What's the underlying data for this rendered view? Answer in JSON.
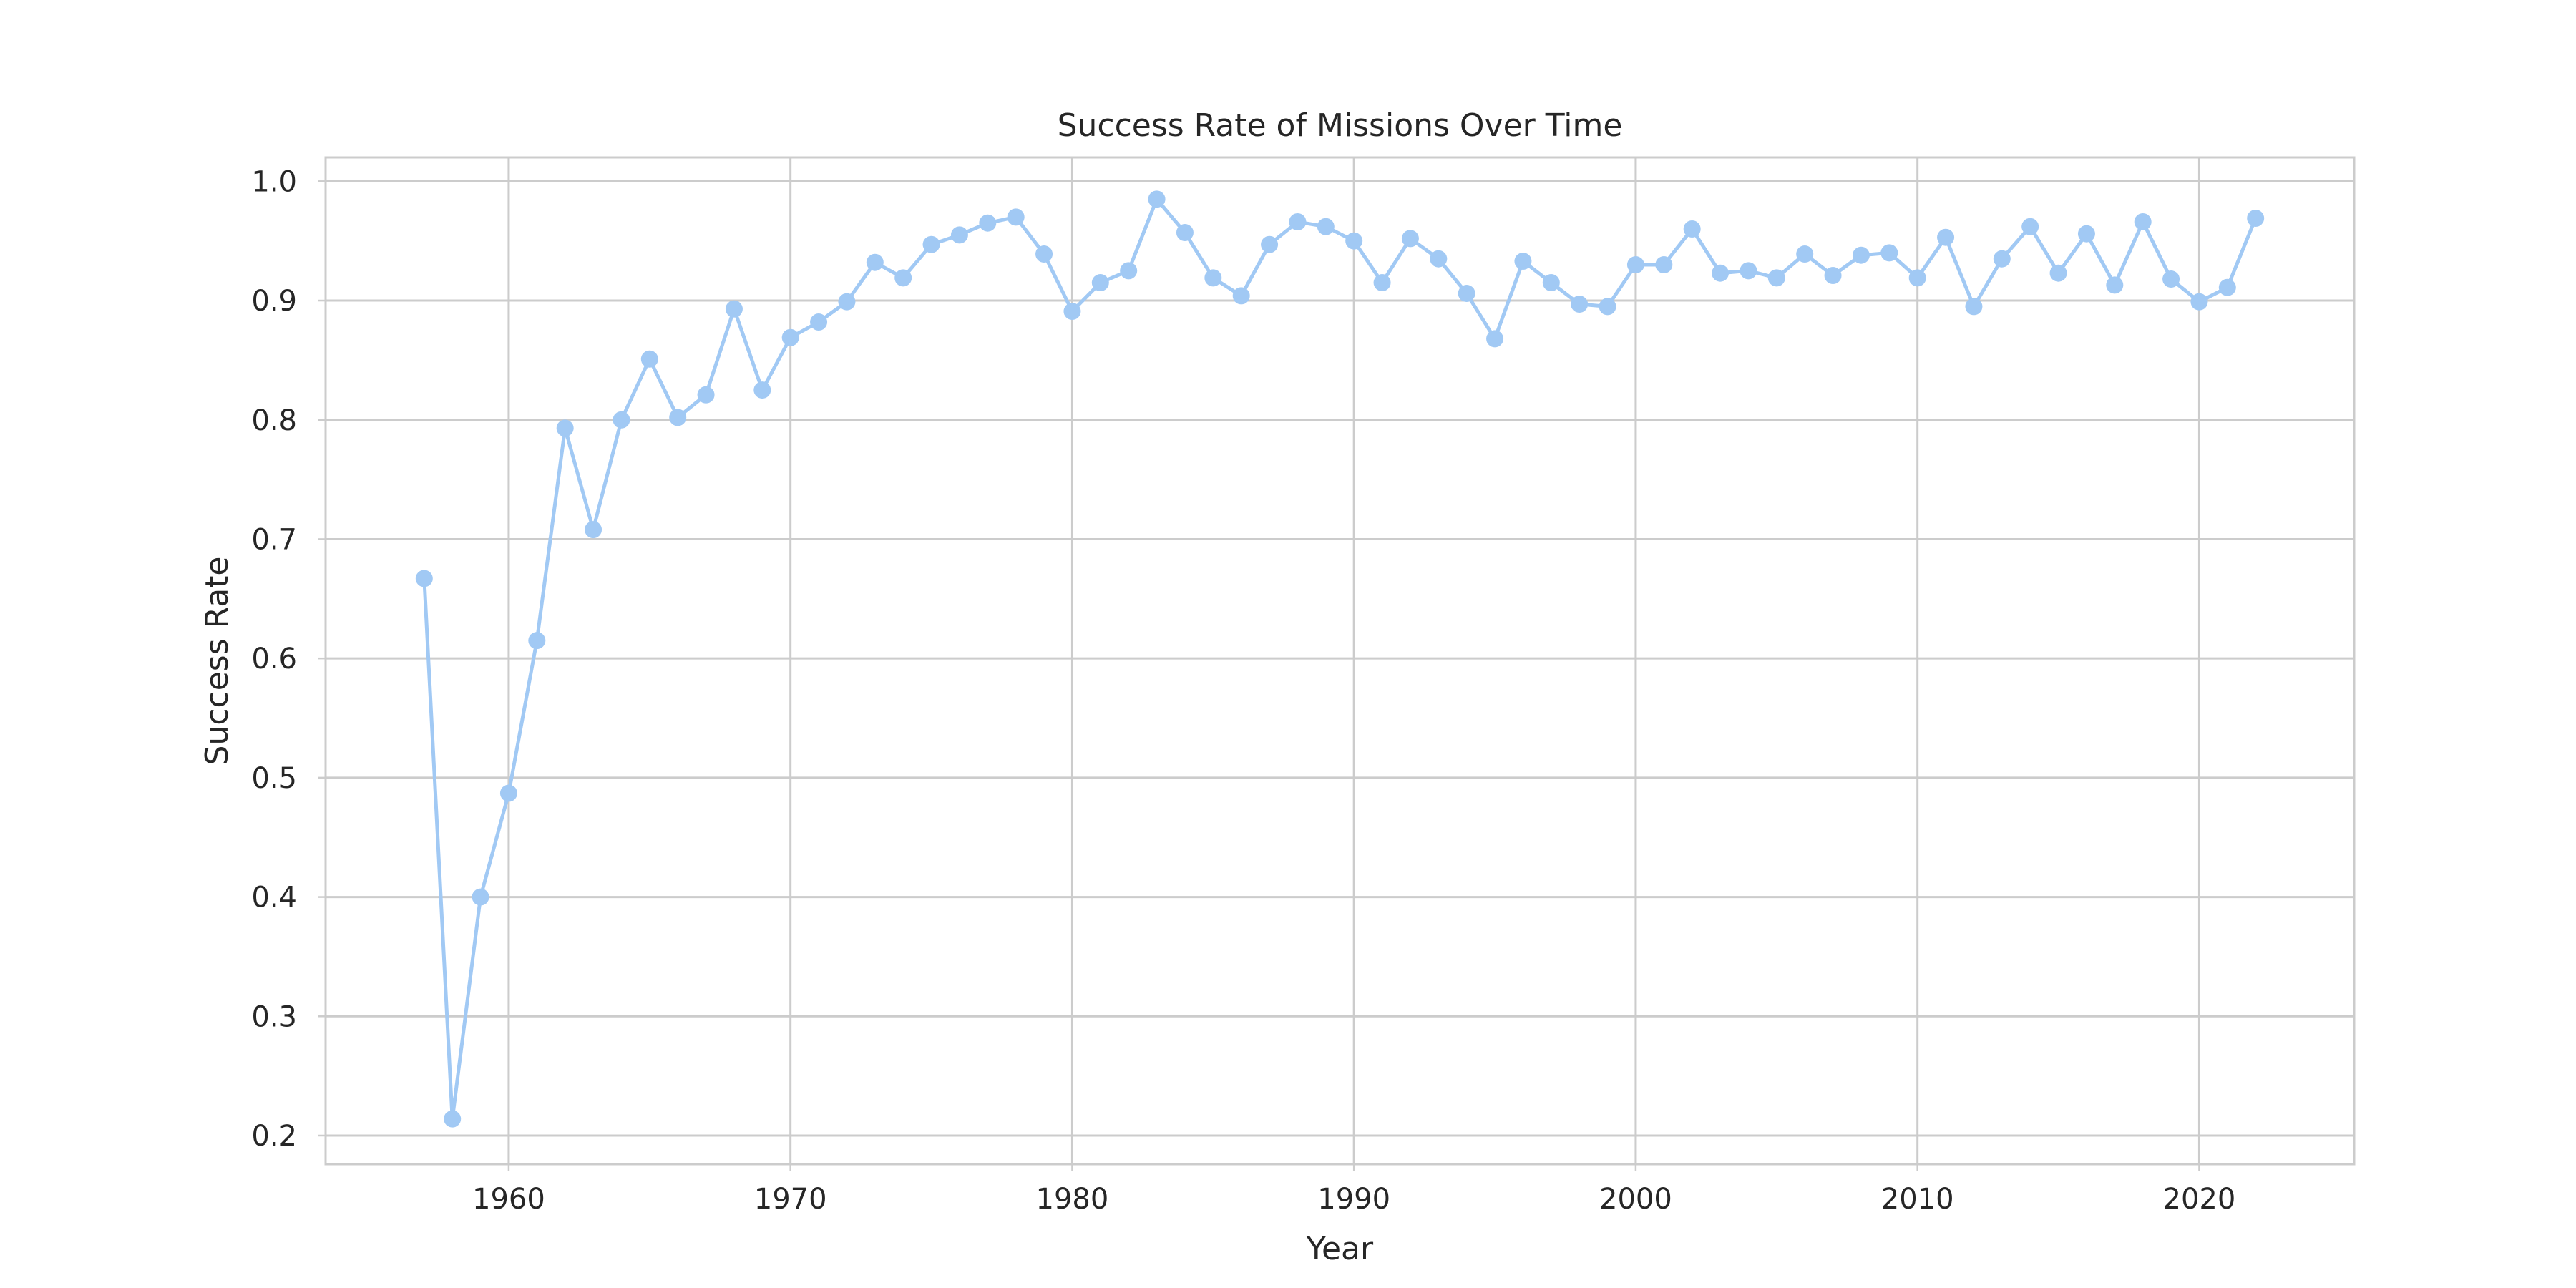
{
  "chart_data": {
    "type": "line",
    "title": "Success Rate of Missions Over Time",
    "xlabel": "Year",
    "ylabel": "Success Rate",
    "xlim": [
      1953.5,
      2025.5
    ],
    "ylim": [
      0.176,
      1.02
    ],
    "x_ticks": [
      1960,
      1970,
      1980,
      1990,
      2000,
      2010,
      2020
    ],
    "x_tick_labels": [
      "1960",
      "1970",
      "1980",
      "1990",
      "2000",
      "2010",
      "2020"
    ],
    "y_ticks": [
      0.2,
      0.3,
      0.4,
      0.5,
      0.6,
      0.7,
      0.8,
      0.9,
      1.0
    ],
    "y_tick_labels": [
      "0.2",
      "0.3",
      "0.4",
      "0.5",
      "0.6",
      "0.7",
      "0.8",
      "0.9",
      "1.0"
    ],
    "grid": true,
    "marker": "circle",
    "series": [
      {
        "name": "Success Rate",
        "color": "#a1c9f4",
        "x": [
          1957,
          1958,
          1959,
          1960,
          1961,
          1962,
          1963,
          1964,
          1965,
          1966,
          1967,
          1968,
          1969,
          1970,
          1971,
          1972,
          1973,
          1974,
          1975,
          1976,
          1977,
          1978,
          1979,
          1980,
          1981,
          1982,
          1983,
          1984,
          1985,
          1986,
          1987,
          1988,
          1989,
          1990,
          1991,
          1992,
          1993,
          1994,
          1995,
          1996,
          1997,
          1998,
          1999,
          2000,
          2001,
          2002,
          2003,
          2004,
          2005,
          2006,
          2007,
          2008,
          2009,
          2010,
          2011,
          2012,
          2013,
          2014,
          2015,
          2016,
          2017,
          2018,
          2019,
          2020,
          2021,
          2022
        ],
        "values": [
          0.667,
          0.214,
          0.4,
          0.487,
          0.615,
          0.793,
          0.708,
          0.8,
          0.851,
          0.802,
          0.821,
          0.893,
          0.825,
          0.869,
          0.882,
          0.899,
          0.932,
          0.919,
          0.947,
          0.955,
          0.965,
          0.97,
          0.939,
          0.891,
          0.915,
          0.925,
          0.985,
          0.957,
          0.919,
          0.904,
          0.947,
          0.966,
          0.962,
          0.95,
          0.915,
          0.952,
          0.935,
          0.906,
          0.868,
          0.933,
          0.915,
          0.897,
          0.895,
          0.93,
          0.93,
          0.96,
          0.923,
          0.925,
          0.919,
          0.939,
          0.921,
          0.938,
          0.94,
          0.919,
          0.953,
          0.895,
          0.935,
          0.962,
          0.923,
          0.956,
          0.913,
          0.966,
          0.918,
          0.899,
          0.911,
          0.969
        ]
      }
    ]
  }
}
